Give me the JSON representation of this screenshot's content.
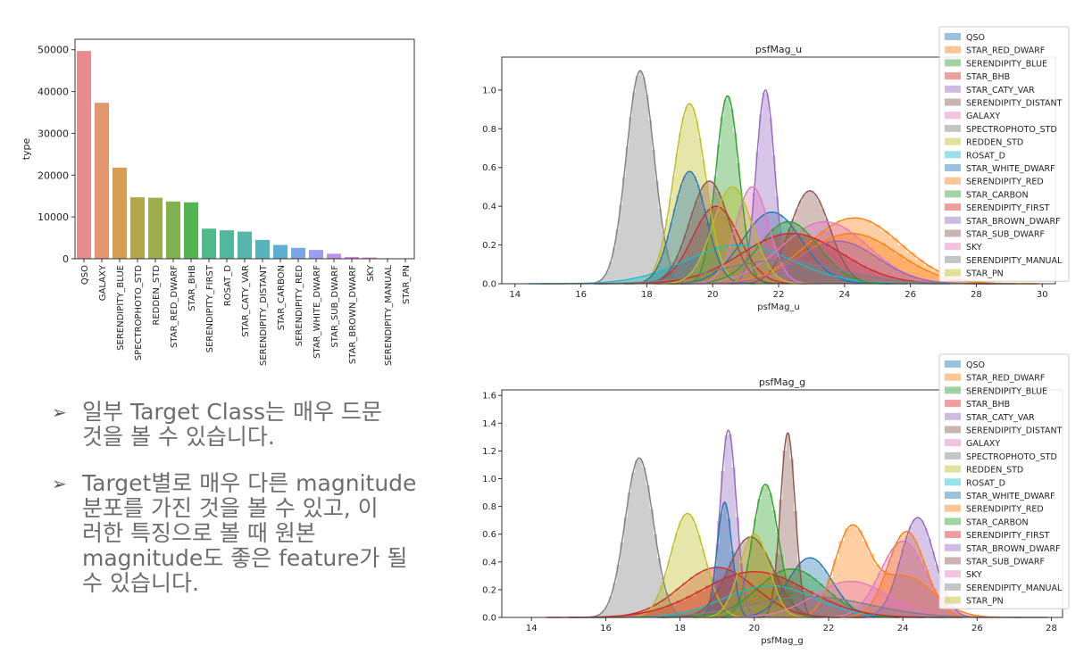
{
  "chart_data": [
    {
      "type": "bar",
      "ylabel": "type",
      "categories": [
        "QSO",
        "GALAXY",
        "SERENDIPITY_BLUE",
        "SPECTROPHOTO_STD",
        "REDDEN_STD",
        "STAR_RED_DWARF",
        "STAR_BHB",
        "SERENDIPITY_FIRST",
        "ROSAT_D",
        "STAR_CATY_VAR",
        "SERENDIPITY_DISTANT",
        "STAR_CARBON",
        "SERENDIPITY_RED",
        "STAR_WHITE_DWARF",
        "STAR_SUB_DWARF",
        "STAR_BROWN_DWARF",
        "SKY",
        "SERENDIPITY_MANUAL",
        "STAR_PN"
      ],
      "values": [
        49700,
        37300,
        21800,
        14700,
        14600,
        13700,
        13500,
        7200,
        6800,
        6500,
        4500,
        3300,
        2600,
        2100,
        1200,
        450,
        300,
        110,
        30
      ],
      "colors": [
        "#e88c8f",
        "#e4966e",
        "#d49e53",
        "#b5a64d",
        "#9ead4d",
        "#82b14d",
        "#52b552",
        "#4fb98a",
        "#52b89c",
        "#54b6ad",
        "#55b4bd",
        "#5aafd2",
        "#79a7e5",
        "#9c9ded",
        "#bb92ec",
        "#d28ae2",
        "#e585d0",
        "#ee86bd",
        "#f08aa6"
      ],
      "yticks": [
        0,
        10000,
        20000,
        30000,
        40000,
        50000
      ],
      "ylim": [
        0,
        52500
      ]
    },
    {
      "type": "area",
      "title": "psfMag_u",
      "xlabel": "psfMag_u",
      "xlim": [
        13.6,
        30.4
      ],
      "ylim": [
        0,
        1.17
      ],
      "xticks": [
        14,
        16,
        18,
        20,
        22,
        24,
        26,
        28,
        30
      ],
      "yticks": [
        0.0,
        0.2,
        0.4,
        0.6,
        0.8,
        1.0
      ],
      "series": [
        {
          "name": "QSO",
          "color": "#1f77b4",
          "dists": [
            [
              21.8,
              0.37,
              0.9
            ]
          ]
        },
        {
          "name": "STAR_RED_DWARF",
          "color": "#ff7f0e",
          "dists": [
            [
              24.3,
              0.34,
              1.4
            ]
          ]
        },
        {
          "name": "SERENDIPITY_BLUE",
          "color": "#2ca02c",
          "dists": [
            [
              20.45,
              0.97,
              0.35
            ]
          ]
        },
        {
          "name": "STAR_BHB",
          "color": "#d62728",
          "dists": [
            [
              20.1,
              0.4,
              0.7
            ]
          ]
        },
        {
          "name": "STAR_CATY_VAR",
          "color": "#9467bd",
          "dists": [
            [
              21.6,
              1.0,
              0.28
            ]
          ]
        },
        {
          "name": "SERENDIPITY_DISTANT",
          "color": "#8c564b",
          "dists": [
            [
              22.95,
              0.48,
              0.6
            ]
          ]
        },
        {
          "name": "GALAXY",
          "color": "#e377c2",
          "dists": [
            [
              23.4,
              0.32,
              1.3
            ]
          ]
        },
        {
          "name": "SPECTROPHOTO_STD",
          "color": "#7f7f7f",
          "dists": [
            [
              17.8,
              1.1,
              0.42
            ]
          ]
        },
        {
          "name": "REDDEN_STD",
          "color": "#bcbd22",
          "dists": [
            [
              19.3,
              0.93,
              0.48
            ]
          ]
        },
        {
          "name": "ROSAT_D",
          "color": "#17becf",
          "dists": [
            [
              20.8,
              0.2,
              1.6
            ]
          ]
        },
        {
          "name": "STAR_WHITE_DWARF",
          "color": "#1f77b4",
          "dists": [
            [
              19.3,
              0.58,
              0.5
            ]
          ]
        },
        {
          "name": "SERENDIPITY_RED",
          "color": "#ff7f0e",
          "dists": [
            [
              24.2,
              0.26,
              1.4
            ]
          ]
        },
        {
          "name": "STAR_CARBON",
          "color": "#2ca02c",
          "dists": [
            [
              22.3,
              0.32,
              0.9
            ]
          ]
        },
        {
          "name": "SERENDIPITY_FIRST",
          "color": "#d62728",
          "dists": [
            [
              22.4,
              0.26,
              1.5
            ]
          ]
        },
        {
          "name": "STAR_BROWN_DWARF",
          "color": "#9467bd",
          "dists": [
            [
              23.8,
              0.22,
              1.2
            ]
          ]
        },
        {
          "name": "STAR_SUB_DWARF",
          "color": "#8c564b",
          "dists": [
            [
              19.9,
              0.53,
              0.6
            ]
          ]
        },
        {
          "name": "SKY",
          "color": "#e377c2",
          "dists": [
            [
              21.2,
              0.5,
              0.5
            ]
          ]
        },
        {
          "name": "SERENDIPITY_MANUAL",
          "color": "#7f7f7f",
          "dists": [
            [
              22.0,
              0.12,
              1.8
            ]
          ]
        },
        {
          "name": "STAR_PN",
          "color": "#bcbd22",
          "dists": [
            [
              20.6,
              0.5,
              0.6
            ]
          ]
        }
      ]
    },
    {
      "type": "area",
      "title": "psfMag_g",
      "xlabel": "psfMag_g",
      "xlim": [
        13.2,
        28.3
      ],
      "ylim": [
        0,
        1.64
      ],
      "xticks": [
        14,
        16,
        18,
        20,
        22,
        24,
        26,
        28
      ],
      "yticks": [
        0.0,
        0.2,
        0.4,
        0.6,
        0.8,
        1.0,
        1.2,
        1.4,
        1.6
      ],
      "series": [
        {
          "name": "QSO",
          "color": "#1f77b4",
          "dists": [
            [
              21.5,
              0.43,
              0.6
            ]
          ]
        },
        {
          "name": "STAR_RED_DWARF",
          "color": "#ff7f0e",
          "dists": [
            [
              22.6,
              0.6,
              0.45
            ],
            [
              24.0,
              0.3,
              0.8
            ]
          ]
        },
        {
          "name": "SERENDIPITY_BLUE",
          "color": "#2ca02c",
          "dists": [
            [
              20.3,
              0.96,
              0.35
            ]
          ]
        },
        {
          "name": "STAR_BHB",
          "color": "#d62728",
          "dists": [
            [
              19.0,
              0.36,
              1.0
            ]
          ]
        },
        {
          "name": "STAR_CATY_VAR",
          "color": "#9467bd",
          "dists": [
            [
              19.3,
              1.35,
              0.22
            ]
          ]
        },
        {
          "name": "SERENDIPITY_DISTANT",
          "color": "#8c564b",
          "dists": [
            [
              20.9,
              1.33,
              0.2
            ]
          ]
        },
        {
          "name": "GALAXY",
          "color": "#e377c2",
          "dists": [
            [
              24.0,
              0.55,
              0.6
            ]
          ]
        },
        {
          "name": "SPECTROPHOTO_STD",
          "color": "#7f7f7f",
          "dists": [
            [
              16.9,
              1.15,
              0.38
            ]
          ]
        },
        {
          "name": "REDDEN_STD",
          "color": "#bcbd22",
          "dists": [
            [
              18.2,
              0.75,
              0.45
            ]
          ]
        },
        {
          "name": "ROSAT_D",
          "color": "#17becf",
          "dists": [
            [
              20.4,
              0.23,
              1.2
            ]
          ]
        },
        {
          "name": "STAR_WHITE_DWARF",
          "color": "#1f77b4",
          "dists": [
            [
              19.2,
              0.83,
              0.2
            ]
          ]
        },
        {
          "name": "SERENDIPITY_RED",
          "color": "#ff7f0e",
          "dists": [
            [
              24.1,
              0.62,
              0.5
            ]
          ]
        },
        {
          "name": "STAR_CARBON",
          "color": "#2ca02c",
          "dists": [
            [
              21.0,
              0.35,
              0.9
            ]
          ]
        },
        {
          "name": "SERENDIPITY_FIRST",
          "color": "#d62728",
          "dists": [
            [
              20.0,
              0.33,
              1.4
            ]
          ]
        },
        {
          "name": "STAR_BROWN_DWARF",
          "color": "#9467bd",
          "dists": [
            [
              24.4,
              0.72,
              0.45
            ]
          ]
        },
        {
          "name": "STAR_SUB_DWARF",
          "color": "#8c564b",
          "dists": [
            [
              19.9,
              0.58,
              0.6
            ]
          ]
        },
        {
          "name": "SKY",
          "color": "#e377c2",
          "dists": [
            [
              22.6,
              0.26,
              1.0
            ]
          ]
        },
        {
          "name": "SERENDIPITY_MANUAL",
          "color": "#7f7f7f",
          "dists": [
            [
              21.5,
              0.15,
              1.6
            ]
          ]
        },
        {
          "name": "STAR_PN",
          "color": "#bcbd22",
          "dists": [
            [
              20.0,
              0.6,
              0.4
            ]
          ]
        }
      ]
    }
  ],
  "bullets": [
    {
      "mark": "➢",
      "text": "일부 Target Class는 매우 드문\n것을 볼 수 있습니다."
    },
    {
      "mark": "➢",
      "text": "Target별로 매우 다른 magnitude\n분포를 가진 것을 볼 수 있고, 이\n러한 특징으로 볼 때 원본\nmagnitude도 좋은 feature가 될\n수 있습니다."
    }
  ]
}
